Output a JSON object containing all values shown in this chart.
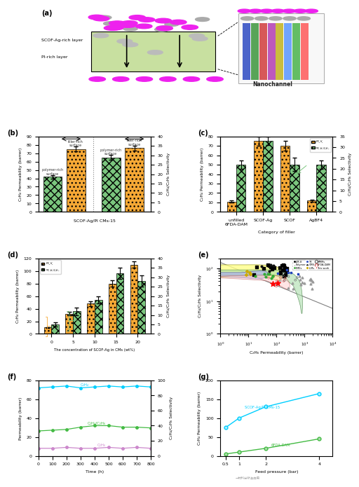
{
  "panel_b": {
    "perm": [
      42,
      75,
      65,
      76
    ],
    "perm_err": [
      2,
      3,
      3,
      3
    ],
    "xlabel": "SCOF-Ag/PI CMs-15",
    "ylabel_left": "C₂H₄ Permeability (barrer)",
    "ylabel_right": "C₂H₄/C₂H₆ Selectivity",
    "ylim_left": [
      0,
      90
    ],
    "ylim_right": [
      0,
      40
    ]
  },
  "panel_c": {
    "categories": [
      "unfilled\n6FDA-DAM",
      "SCOF-Ag",
      "SCOF",
      "AgBF4"
    ],
    "perm": [
      11,
      75,
      70,
      12
    ],
    "perm_err": [
      1,
      5,
      5,
      1
    ],
    "sel": [
      22,
      33,
      22,
      22
    ],
    "sel_err": [
      2,
      2,
      3,
      2
    ],
    "xlabel": "Category of filler",
    "ylabel_left": "C₂H₄ Permeability (barrer)",
    "ylabel_right": "C₂H₄/C₂H₆ Selectivity",
    "ylim_left": [
      0,
      80
    ],
    "ylim_right": [
      0,
      35
    ]
  },
  "panel_d": {
    "concentrations": [
      0,
      5,
      10,
      15,
      20
    ],
    "perm": [
      10,
      32,
      48,
      80,
      110
    ],
    "perm_err": [
      1,
      3,
      4,
      5,
      5
    ],
    "sel": [
      5,
      12,
      18,
      32,
      28
    ],
    "sel_err": [
      1,
      2,
      2,
      3,
      3
    ],
    "xlabel": "The concentration of SCOF-Ag in CMs (wt%)",
    "ylabel_left": "C₂H₄ Permeability (barrer)",
    "ylabel_right": "C₂H₄/C₂H₆ Selectivity",
    "ylim_left": [
      0,
      120
    ],
    "ylim_right": [
      0,
      40
    ]
  },
  "panel_f": {
    "time": [
      0,
      100,
      200,
      300,
      400,
      500,
      600,
      700,
      800
    ],
    "c2h4_perm": [
      72,
      73,
      74,
      72,
      73,
      74,
      73,
      74,
      73
    ],
    "c2h6_perm": [
      8,
      8,
      9,
      8,
      8,
      9,
      8,
      9,
      8
    ],
    "sel": [
      33,
      34,
      35,
      38,
      40,
      40,
      38,
      38,
      37
    ],
    "xlabel": "Time (h)",
    "ylabel_left": "Permeability (barrer)",
    "ylabel_right": "C₂H₄/C₂H₆ Selectivity",
    "ylim_left": [
      0,
      80
    ],
    "ylim_right": [
      0,
      100
    ]
  },
  "panel_g": {
    "pressure": [
      0.5,
      1.0,
      2.0,
      4.0
    ],
    "scof_perm": [
      75,
      100,
      130,
      165
    ],
    "fda_perm": [
      5,
      10,
      20,
      45
    ],
    "xlabel": "Feed pressure (bar)",
    "ylabel": "C₂H₄ Permeability (barrer)",
    "ylim": [
      0,
      200
    ],
    "label_scof": "SCOF-Ag/PI CMs-15",
    "label_fda": "6FDA-DAM"
  },
  "orange_color": "#F5A835",
  "green_color": "#7BC67E",
  "cyan_color": "#00CFFF",
  "purple_color": "#CC88CC",
  "green_line_color": "#44BB44"
}
